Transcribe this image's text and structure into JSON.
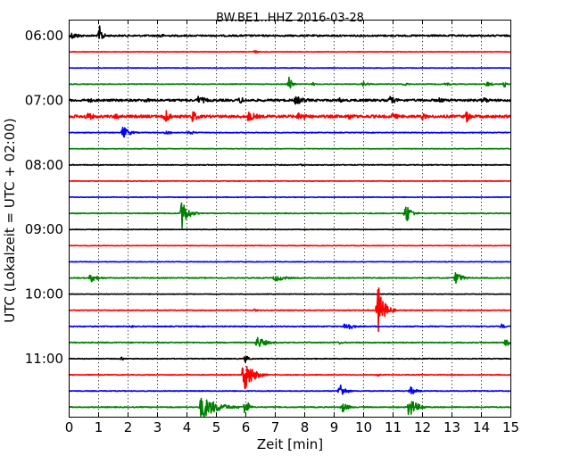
{
  "chart_data": {
    "type": "line",
    "title": "BW.BE1..HHZ 2016-03-28",
    "xlabel": "Zeit  [min]",
    "ylabel": "UTC (Lokalzeit = UTC + 02:00)",
    "xlim": [
      0,
      15
    ],
    "x_ticks": [
      "0",
      "1",
      "2",
      "3",
      "4",
      "5",
      "6",
      "7",
      "8",
      "9",
      "10",
      "11",
      "12",
      "13",
      "14",
      "15"
    ],
    "y_tick_labels": [
      {
        "label": "06:00",
        "trace": 0
      },
      {
        "label": "07:00",
        "trace": 4
      },
      {
        "label": "08:00",
        "trace": 8
      },
      {
        "label": "09:00",
        "trace": 12
      },
      {
        "label": "10:00",
        "trace": 16
      },
      {
        "label": "11:00",
        "trace": 20
      }
    ],
    "grid": "vertical dotted",
    "trace_interval_min": 15,
    "color_cycle": [
      "#000000",
      "#ff0000",
      "#0000ff",
      "#008000"
    ],
    "traces": [
      {
        "start": "06:00",
        "noise": 0.9,
        "events": [
          {
            "t": 0.1,
            "amp": 4,
            "dur": 1.0
          },
          {
            "t": 1.05,
            "amp": 11,
            "dur": 0.35
          },
          {
            "t": 3.1,
            "amp": 3,
            "dur": 0.5
          }
        ]
      },
      {
        "start": "06:15",
        "noise": 0.3,
        "events": [
          {
            "t": 6.3,
            "amp": 2,
            "dur": 0.4
          }
        ]
      },
      {
        "start": "06:30",
        "noise": 0.3,
        "events": []
      },
      {
        "start": "06:45",
        "noise": 0.4,
        "events": [
          {
            "t": 7.5,
            "amp": 11,
            "dur": 0.25
          },
          {
            "t": 8.3,
            "amp": 2,
            "dur": 0.3
          },
          {
            "t": 10.0,
            "amp": 3,
            "dur": 0.6
          },
          {
            "t": 11.4,
            "amp": 2.5,
            "dur": 0.4
          },
          {
            "t": 12.8,
            "amp": 2.5,
            "dur": 0.5
          },
          {
            "t": 14.2,
            "amp": 3,
            "dur": 0.6
          },
          {
            "t": 14.8,
            "amp": 4,
            "dur": 0.2
          }
        ]
      },
      {
        "start": "07:00",
        "noise": 1.2,
        "events": [
          {
            "t": 0.7,
            "amp": 3,
            "dur": 0.5
          },
          {
            "t": 2.6,
            "amp": 3,
            "dur": 0.6
          },
          {
            "t": 4.4,
            "amp": 5,
            "dur": 1.0
          },
          {
            "t": 5.8,
            "amp": 4,
            "dur": 0.8
          },
          {
            "t": 7.7,
            "amp": 5,
            "dur": 1.2
          },
          {
            "t": 9.2,
            "amp": 3,
            "dur": 0.6
          },
          {
            "t": 10.9,
            "amp": 5,
            "dur": 0.8
          },
          {
            "t": 12.6,
            "amp": 3.5,
            "dur": 0.6
          },
          {
            "t": 14.1,
            "amp": 4,
            "dur": 0.6
          }
        ]
      },
      {
        "start": "07:15",
        "noise": 1.5,
        "events": [
          {
            "t": 0.6,
            "amp": 5,
            "dur": 1.0
          },
          {
            "t": 1.6,
            "amp": 4,
            "dur": 0.8
          },
          {
            "t": 3.25,
            "amp": 11,
            "dur": 0.5
          },
          {
            "t": 4.2,
            "amp": 7,
            "dur": 0.6
          },
          {
            "t": 6.1,
            "amp": 6,
            "dur": 1.0
          },
          {
            "t": 7.8,
            "amp": 5,
            "dur": 1.2
          },
          {
            "t": 9.5,
            "amp": 4,
            "dur": 0.8
          },
          {
            "t": 11.0,
            "amp": 4,
            "dur": 0.8
          },
          {
            "t": 12.0,
            "amp": 4,
            "dur": 0.6
          },
          {
            "t": 13.5,
            "amp": 7,
            "dur": 0.6
          }
        ]
      },
      {
        "start": "07:30",
        "noise": 0.4,
        "events": [
          {
            "t": 1.85,
            "amp": 8,
            "dur": 0.6
          },
          {
            "t": 3.3,
            "amp": 3,
            "dur": 0.6
          },
          {
            "t": 4.1,
            "amp": 3,
            "dur": 0.5
          }
        ]
      },
      {
        "start": "07:45",
        "noise": 0.3,
        "events": []
      },
      {
        "start": "08:00",
        "noise": 0.4,
        "events": [
          {
            "t": 7.9,
            "amp": 2,
            "dur": 0.2
          }
        ]
      },
      {
        "start": "08:15",
        "noise": 0.3,
        "events": []
      },
      {
        "start": "08:30",
        "noise": 0.3,
        "events": []
      },
      {
        "start": "08:45",
        "noise": 0.4,
        "events": [
          {
            "t": 3.85,
            "amp": 17,
            "dur": 0.6
          },
          {
            "t": 11.45,
            "amp": 13,
            "dur": 0.5
          }
        ]
      },
      {
        "start": "09:00",
        "noise": 0.3,
        "events": []
      },
      {
        "start": "09:15",
        "noise": 0.3,
        "events": []
      },
      {
        "start": "09:30",
        "noise": 0.3,
        "events": []
      },
      {
        "start": "09:45",
        "noise": 0.5,
        "events": [
          {
            "t": 0.75,
            "amp": 5,
            "dur": 0.8
          },
          {
            "t": 7.0,
            "amp": 4,
            "dur": 1.2
          },
          {
            "t": 13.15,
            "amp": 8,
            "dur": 0.6
          }
        ]
      },
      {
        "start": "10:00",
        "noise": 0.3,
        "events": []
      },
      {
        "start": "10:15",
        "noise": 0.4,
        "events": [
          {
            "t": 6.3,
            "amp": 2,
            "dur": 0.3
          },
          {
            "t": 10.5,
            "amp": 30,
            "dur": 0.6
          }
        ]
      },
      {
        "start": "10:30",
        "noise": 0.5,
        "events": [
          {
            "t": 2.1,
            "amp": 2,
            "dur": 0.4
          },
          {
            "t": 9.4,
            "amp": 7,
            "dur": 0.6
          },
          {
            "t": 14.7,
            "amp": 3,
            "dur": 0.4
          }
        ]
      },
      {
        "start": "10:45",
        "noise": 0.5,
        "events": [
          {
            "t": 6.4,
            "amp": 7,
            "dur": 0.9
          },
          {
            "t": 9.2,
            "amp": 2,
            "dur": 0.4
          },
          {
            "t": 14.85,
            "amp": 8,
            "dur": 0.35
          }
        ]
      },
      {
        "start": "11:00",
        "noise": 0.4,
        "events": [
          {
            "t": 1.8,
            "amp": 3,
            "dur": 0.2
          },
          {
            "t": 6.0,
            "amp": 4,
            "dur": 0.4
          }
        ]
      },
      {
        "start": "11:15",
        "noise": 0.4,
        "events": [
          {
            "t": 5.95,
            "amp": 22,
            "dur": 0.8
          },
          {
            "t": 10.5,
            "amp": 2,
            "dur": 0.3
          }
        ]
      },
      {
        "start": "11:30",
        "noise": 0.4,
        "events": [
          {
            "t": 9.2,
            "amp": 10,
            "dur": 0.5
          },
          {
            "t": 11.6,
            "amp": 5,
            "dur": 0.6
          }
        ]
      },
      {
        "start": "11:45",
        "noise": 0.5,
        "events": [
          {
            "t": 4.5,
            "amp": 14,
            "dur": 1.6
          },
          {
            "t": 6.0,
            "amp": 14,
            "dur": 0.3
          },
          {
            "t": 9.3,
            "amp": 6,
            "dur": 0.6
          },
          {
            "t": 11.55,
            "amp": 12,
            "dur": 0.8
          }
        ]
      }
    ]
  }
}
